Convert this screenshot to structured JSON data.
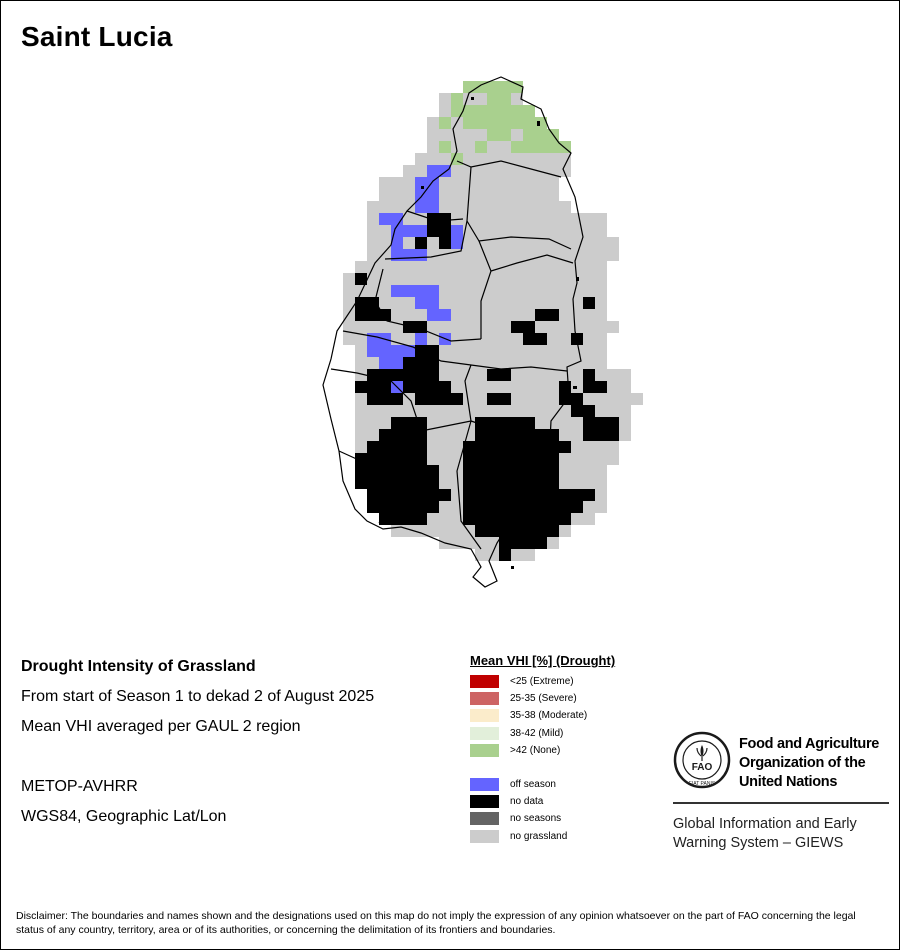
{
  "title": "Saint Lucia",
  "info": {
    "line1": "Drought Intensity of Grassland",
    "line2": "From start of Season 1 to dekad 2 of August 2025",
    "line3": "Mean VHI averaged per GAUL 2 region",
    "line4": "METOP-AVHRR",
    "line5": "WGS84, Geographic Lat/Lon"
  },
  "legend": {
    "title": "Mean VHI [%] (Drought)",
    "classes": [
      {
        "label": "<25    (Extreme)",
        "color": "#c00000"
      },
      {
        "label": "25-35 (Severe)",
        "color": "#cd6464"
      },
      {
        "label": "35-38 (Moderate)",
        "color": "#fbeccb"
      },
      {
        "label": "38-42 (Mild)",
        "color": "#e2efda"
      },
      {
        "label": ">42    (None)",
        "color": "#a9d08e"
      }
    ],
    "other": [
      {
        "label": "off season",
        "color": "#6464ff"
      },
      {
        "label": "no data",
        "color": "#000000"
      },
      {
        "label": "no seasons",
        "color": "#646464"
      },
      {
        "label": "no grassland",
        "color": "#cccccc"
      }
    ]
  },
  "org": {
    "name_line1": "Food and Agriculture",
    "name_line2": "Organization of the",
    "name_line3": "United Nations",
    "system_line1": "Global Information and Early",
    "system_line2": "Warning System – GIEWS",
    "logo_text": "FAO",
    "logo_ring_text": "FIAT PANIS"
  },
  "disclaimer": "Disclaimer: The boundaries and names shown and the designations used on this map do not imply the expression of any opinion whatsoever on the part of FAO concerning the legal status of any country, territory, area or of its authorities, or concerning the delimitation of its frontiers and boundaries.",
  "map_colors": {
    "no_grassland": "#cccccc",
    "mild": "#e2efda",
    "none": "#a9d08e",
    "off_season": "#6464ff",
    "no_data": "#000000"
  },
  "map_grid": [
    "...........GGGGG...........",
    ".........gGggGGg...........",
    ".........gGGGGGGG..........",
    "........gGgGGGGGGG.........",
    "........gggggGGgGGG........",
    "........gGggGggGGGGG.......",
    ".......gggGggggggggg.......",
    "......ggLLgggggggggg.......",
    "....gggLLgggggggggg........",
    "....gggLLgggggggggg........",
    "...ggggLLggggggggggg.......",
    "...gLLggBBggggggggggggg....",
    "...ggLLLBBLgggggggggggg....",
    "...ggLgBgBLggggggggggggg...",
    "...ggLLLgggggggggggggggg...",
    "..ggggggggggggggggggggg....",
    ".gBgggggggggggggggggggg....",
    ".ggggLLLLgggggggggggggg....",
    ".gBBgggLLggggggggggggBg....",
    ".gBBBgggLLgggggggBBgggg....",
    ".gggggBBgggggggBBggggggg...",
    ".ggLLggLgLggggggBBggBgg....",
    "..gLLLLBBgggggggggggggg....",
    "..ggLLBBBgggggggggggggg....",
    "..gBBBBBBggggBBggggggBggg..",
    "..BBBLBBBBgggggggggBgBBgg..",
    "..gBBBgBBBBggBBggggBBggggg.",
    "..ggggggggggggggggggBBggg..",
    "..gggBBBggggBBBBBggggBBBg..",
    "..ggBBBBggggBBBBBBBggBBBg..",
    "..gBBBBBgggBBBBBBBBBgggg...",
    "..BBBBBBgggBBBBBBBBggggg...",
    "..BBBBBBBggBBBBBBBBgggg....",
    "..BBBBBBBggBBBBBBBBgggg....",
    "...BBBBBBBgBBBBBBBBBBBg....",
    "...BBBBBBggBBBBBBBBBBgg....",
    "....BBBBgggBBBBBBBBBgg.....",
    ".....gggggggBBBBBBBg.......",
    ".........gggggBBBBg........",
    "............ggBgg.........."
  ]
}
